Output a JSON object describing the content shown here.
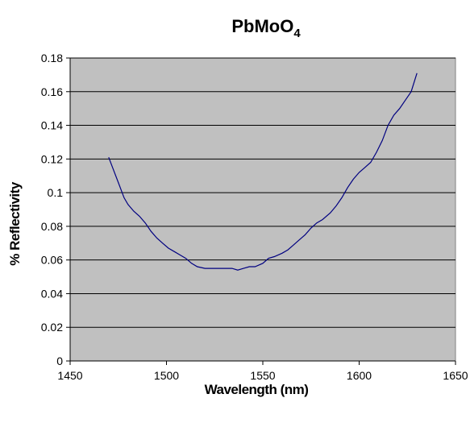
{
  "chart_data": {
    "type": "line",
    "title": "PbMoO",
    "title_subscript": "4",
    "xlabel": "Wavelength (nm)",
    "ylabel": "% Reflectivity",
    "xlim": [
      1450,
      1650
    ],
    "ylim": [
      0,
      0.18
    ],
    "x_ticks": [
      "1450",
      "1500",
      "1550",
      "1600",
      "1650"
    ],
    "y_ticks": [
      "0",
      "0.02",
      "0.04",
      "0.06",
      "0.08",
      "0.1",
      "0.12",
      "0.14",
      "0.16",
      "0.18"
    ],
    "grid": true,
    "background_color": "#c0c0c0",
    "line_color": "#000080",
    "series": [
      {
        "x": [
          1470,
          1472,
          1475,
          1478,
          1480,
          1483,
          1486,
          1489,
          1492,
          1495,
          1498,
          1501,
          1504,
          1507,
          1510,
          1513,
          1516,
          1520,
          1524,
          1528,
          1531,
          1534,
          1537,
          1540,
          1543,
          1546,
          1550,
          1553,
          1556,
          1560,
          1563,
          1566,
          1569,
          1572,
          1575,
          1578,
          1581,
          1585,
          1588,
          1591,
          1594,
          1597,
          1600,
          1603,
          1606,
          1609,
          1612,
          1615,
          1618,
          1621,
          1624,
          1627,
          1630
        ],
        "y": [
          0.121,
          0.115,
          0.106,
          0.097,
          0.093,
          0.089,
          0.086,
          0.082,
          0.077,
          0.073,
          0.07,
          0.067,
          0.065,
          0.063,
          0.061,
          0.058,
          0.056,
          0.055,
          0.055,
          0.055,
          0.055,
          0.055,
          0.054,
          0.055,
          0.056,
          0.056,
          0.058,
          0.061,
          0.062,
          0.064,
          0.066,
          0.069,
          0.072,
          0.075,
          0.079,
          0.082,
          0.084,
          0.088,
          0.092,
          0.097,
          0.103,
          0.108,
          0.112,
          0.115,
          0.118,
          0.124,
          0.131,
          0.14,
          0.146,
          0.15,
          0.155,
          0.16,
          0.171
        ]
      }
    ]
  }
}
